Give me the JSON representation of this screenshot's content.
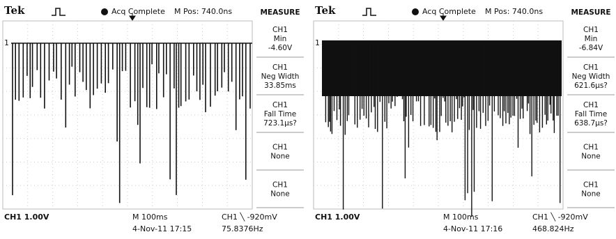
{
  "screens": [
    {
      "header": {
        "brand": "Tek",
        "status": "Acq Complete",
        "position": "M Pos: 740.0ns"
      },
      "marker": "1",
      "measure": {
        "title": "MEASURE",
        "items": [
          {
            "channel": "CH1",
            "label": "Min",
            "value": "-4.60V"
          },
          {
            "channel": "CH1",
            "label": "Neg Width",
            "value": "33.85ms"
          },
          {
            "channel": "CH1",
            "label": "Fall Time",
            "value": "723.1µs?"
          },
          {
            "channel": "CH1",
            "label": "None"
          },
          {
            "channel": "CH1",
            "label": "None"
          }
        ]
      },
      "footer": {
        "channel_scale": "CH1  1.00V",
        "timebase": "M 100ms",
        "timestamp": "4-Nov-11 17:15",
        "trigger": "CH1 ╲ -920mV",
        "frequency": "75.8376Hz"
      }
    },
    {
      "header": {
        "brand": "Tek",
        "status": "Acq Complete",
        "position": "M Pos: 740.0ns"
      },
      "marker": "1",
      "measure": {
        "title": "MEASURE",
        "items": [
          {
            "channel": "CH1",
            "label": "Min",
            "value": "-6.84V"
          },
          {
            "channel": "CH1",
            "label": "Neg Width",
            "value": "621.6µs?"
          },
          {
            "channel": "CH1",
            "label": "Fall Time",
            "value": "638.7µs?"
          },
          {
            "channel": "CH1",
            "label": "None"
          },
          {
            "channel": "CH1",
            "label": "None"
          }
        ]
      },
      "footer": {
        "channel_scale": "CH1  1.00V",
        "timebase": "M 100ms",
        "timestamp": "4-Nov-11 17:16",
        "trigger": "CH1 ╲ -920mV",
        "frequency": "468.824Hz"
      }
    }
  ]
}
